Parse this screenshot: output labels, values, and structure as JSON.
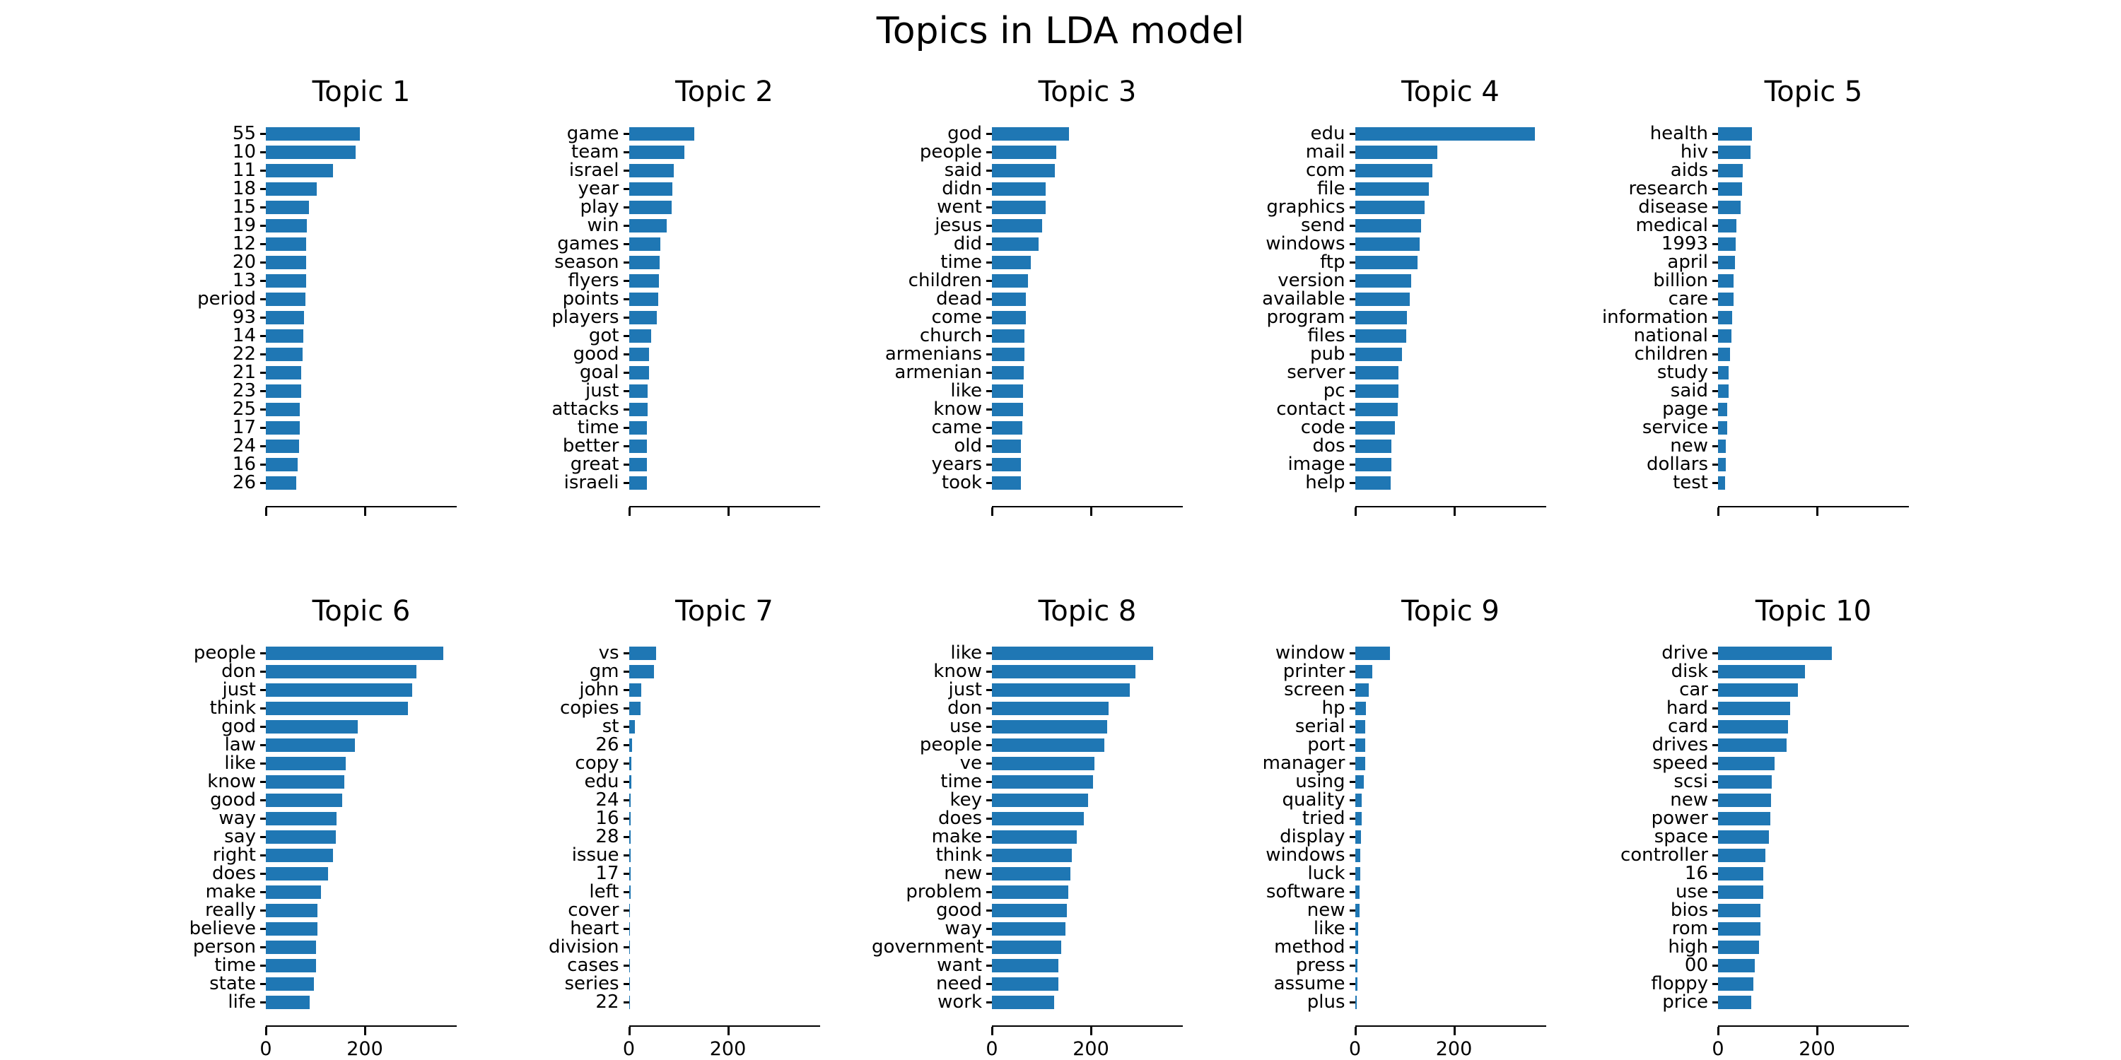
{
  "title": "Topics in LDA model",
  "colors": {
    "bar": "#1f77b4",
    "text": "#000000"
  },
  "axis": {
    "ticks": [
      0,
      200
    ],
    "tick_labels": [
      "0",
      "200"
    ],
    "xlim": [
      0,
      386
    ],
    "tick_labels_on_bottom_row_only": true
  },
  "chart_data": [
    {
      "type": "bar",
      "orientation": "horizontal",
      "title": "Topic 1",
      "categories": [
        "55",
        "10",
        "11",
        "18",
        "15",
        "19",
        "12",
        "20",
        "13",
        "period",
        "93",
        "14",
        "22",
        "21",
        "23",
        "25",
        "17",
        "24",
        "16",
        "26"
      ],
      "values": [
        190,
        182,
        135,
        103,
        87,
        83,
        82,
        82,
        82,
        80,
        77,
        76,
        74,
        71,
        71,
        69,
        68,
        67,
        64,
        62
      ],
      "xlim": [
        0,
        386
      ]
    },
    {
      "type": "bar",
      "orientation": "horizontal",
      "title": "Topic 2",
      "categories": [
        "game",
        "team",
        "israel",
        "year",
        "play",
        "win",
        "games",
        "season",
        "flyers",
        "points",
        "players",
        "got",
        "good",
        "goal",
        "just",
        "attacks",
        "time",
        "better",
        "great",
        "israeli"
      ],
      "values": [
        132,
        112,
        90,
        88,
        87,
        76,
        63,
        62,
        61,
        59,
        56,
        45,
        41,
        40,
        38,
        38,
        37,
        36,
        36,
        36
      ],
      "xlim": [
        0,
        386
      ]
    },
    {
      "type": "bar",
      "orientation": "horizontal",
      "title": "Topic 3",
      "categories": [
        "god",
        "people",
        "said",
        "didn",
        "went",
        "jesus",
        "did",
        "time",
        "children",
        "dead",
        "come",
        "church",
        "armenians",
        "armenian",
        "like",
        "know",
        "came",
        "old",
        "years",
        "took"
      ],
      "values": [
        155,
        130,
        127,
        109,
        108,
        102,
        94,
        79,
        73,
        68,
        68,
        66,
        66,
        64,
        63,
        63,
        62,
        59,
        59,
        58
      ],
      "xlim": [
        0,
        386
      ]
    },
    {
      "type": "bar",
      "orientation": "horizontal",
      "title": "Topic 4",
      "categories": [
        "edu",
        "mail",
        "com",
        "file",
        "graphics",
        "send",
        "windows",
        "ftp",
        "version",
        "available",
        "program",
        "files",
        "pub",
        "server",
        "pc",
        "contact",
        "code",
        "dos",
        "image",
        "help"
      ],
      "values": [
        364,
        167,
        157,
        149,
        141,
        134,
        130,
        127,
        114,
        111,
        105,
        103,
        95,
        88,
        88,
        87,
        80,
        73,
        73,
        72
      ],
      "xlim": [
        0,
        386
      ]
    },
    {
      "type": "bar",
      "orientation": "horizontal",
      "title": "Topic 5",
      "categories": [
        "health",
        "hiv",
        "aids",
        "research",
        "disease",
        "medical",
        "1993",
        "april",
        "billion",
        "care",
        "information",
        "national",
        "children",
        "study",
        "said",
        "page",
        "service",
        "new",
        "dollars",
        "test"
      ],
      "values": [
        69,
        66,
        50,
        49,
        45,
        37,
        35,
        34,
        32,
        32,
        28,
        27,
        24,
        22,
        21,
        18,
        18,
        16,
        16,
        14
      ],
      "xlim": [
        0,
        386
      ]
    },
    {
      "type": "bar",
      "orientation": "horizontal",
      "title": "Topic 6",
      "categories": [
        "people",
        "don",
        "just",
        "think",
        "god",
        "law",
        "like",
        "know",
        "good",
        "way",
        "say",
        "right",
        "does",
        "make",
        "really",
        "believe",
        "person",
        "time",
        "state",
        "life"
      ],
      "values": [
        358,
        304,
        295,
        287,
        186,
        180,
        162,
        158,
        154,
        143,
        141,
        135,
        125,
        112,
        104,
        104,
        102,
        102,
        97,
        88
      ],
      "xlim": [
        0,
        386
      ]
    },
    {
      "type": "bar",
      "orientation": "horizontal",
      "title": "Topic 7",
      "categories": [
        "vs",
        "gm",
        "john",
        "copies",
        "st",
        "26",
        "copy",
        "edu",
        "24",
        "16",
        "28",
        "issue",
        "17",
        "left",
        "cover",
        "heart",
        "division",
        "cases",
        "series",
        "22"
      ],
      "values": [
        55,
        51,
        25,
        23,
        12,
        6,
        5,
        5,
        4,
        4,
        4,
        3,
        3,
        3,
        2,
        2,
        2,
        2,
        2,
        1
      ],
      "xlim": [
        0,
        386
      ]
    },
    {
      "type": "bar",
      "orientation": "horizontal",
      "title": "Topic 8",
      "categories": [
        "like",
        "know",
        "just",
        "don",
        "use",
        "people",
        "ve",
        "time",
        "key",
        "does",
        "make",
        "think",
        "new",
        "problem",
        "good",
        "way",
        "government",
        "want",
        "need",
        "work"
      ],
      "values": [
        326,
        290,
        278,
        236,
        233,
        227,
        207,
        204,
        194,
        186,
        172,
        161,
        158,
        154,
        151,
        149,
        140,
        134,
        134,
        125
      ],
      "xlim": [
        0,
        386
      ]
    },
    {
      "type": "bar",
      "orientation": "horizontal",
      "title": "Topic 9",
      "categories": [
        "window",
        "printer",
        "screen",
        "hp",
        "serial",
        "port",
        "manager",
        "using",
        "quality",
        "tried",
        "display",
        "windows",
        "luck",
        "software",
        "new",
        "like",
        "method",
        "press",
        "assume",
        "plus"
      ],
      "values": [
        70,
        35,
        28,
        22,
        21,
        21,
        21,
        18,
        13,
        13,
        12,
        10,
        10,
        9,
        9,
        6,
        6,
        5,
        5,
        4
      ],
      "xlim": [
        0,
        386
      ]
    },
    {
      "type": "bar",
      "orientation": "horizontal",
      "title": "Topic 10",
      "categories": [
        "drive",
        "disk",
        "car",
        "hard",
        "card",
        "drives",
        "speed",
        "scsi",
        "new",
        "power",
        "space",
        "controller",
        "16",
        "use",
        "bios",
        "rom",
        "high",
        "00",
        "floppy",
        "price"
      ],
      "values": [
        230,
        175,
        161,
        146,
        142,
        138,
        114,
        108,
        107,
        105,
        103,
        96,
        91,
        91,
        85,
        85,
        83,
        74,
        71,
        67
      ],
      "xlim": [
        0,
        386
      ]
    }
  ]
}
